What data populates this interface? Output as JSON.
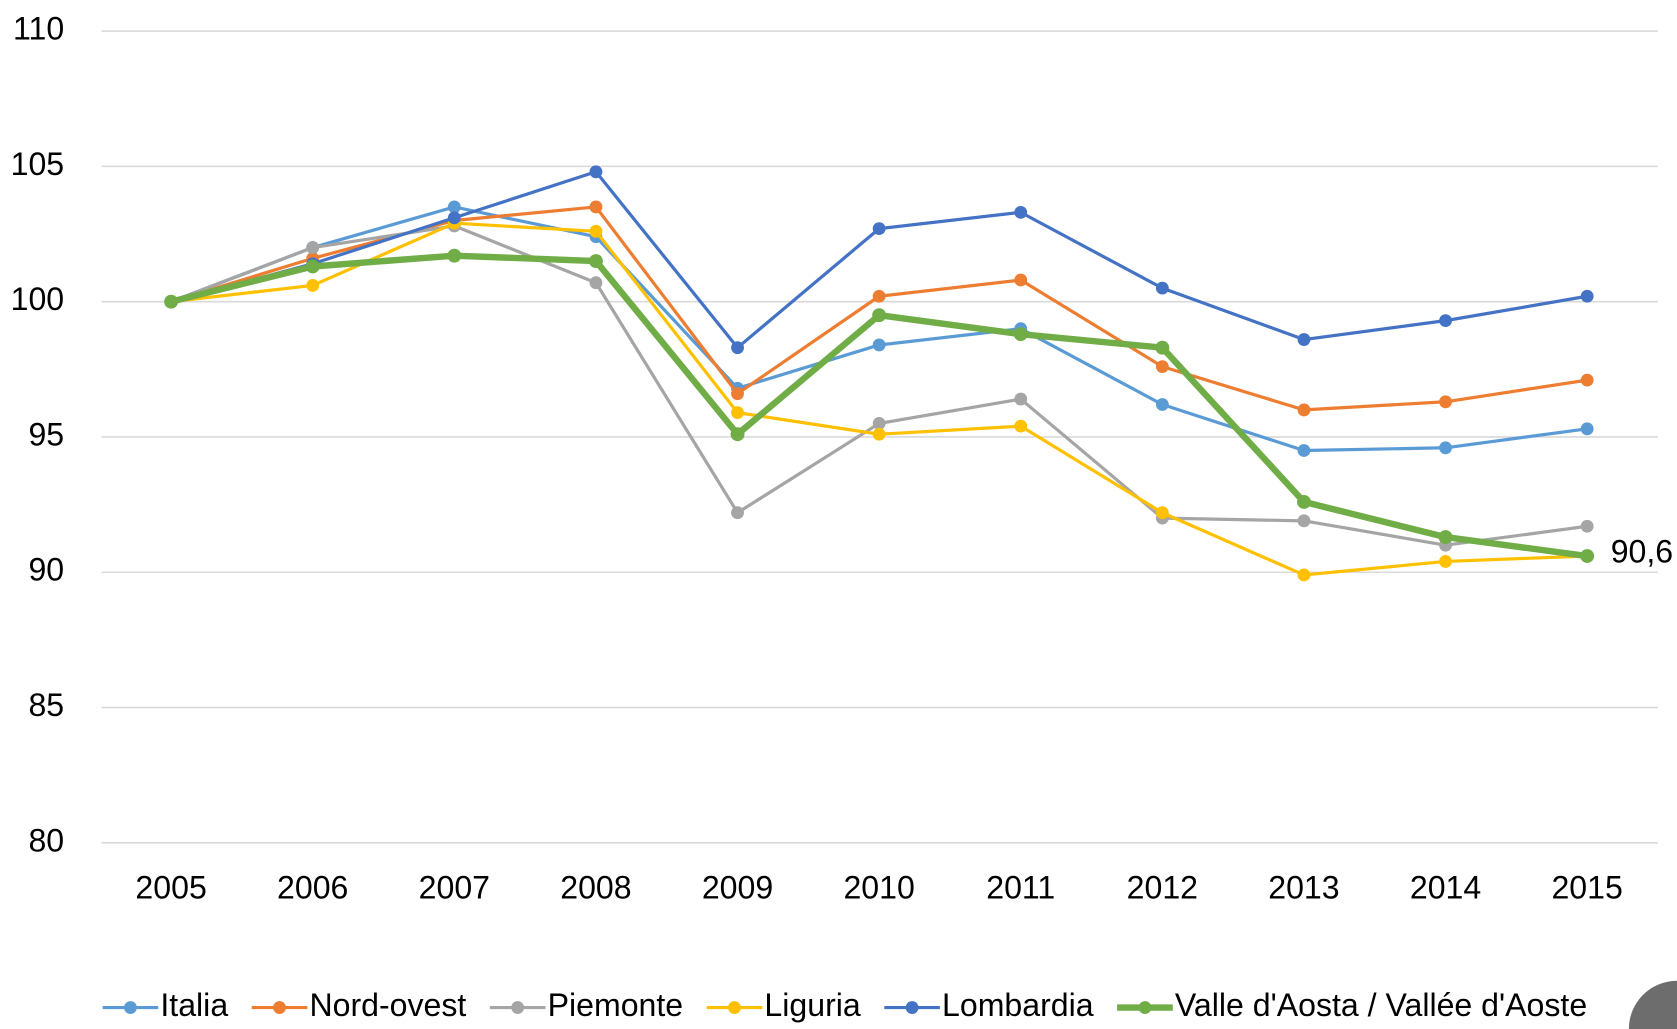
{
  "chart_data": {
    "type": "line",
    "x": [
      "2005",
      "2006",
      "2007",
      "2008",
      "2009",
      "2010",
      "2011",
      "2012",
      "2013",
      "2014",
      "2015"
    ],
    "series": [
      {
        "name": "Italia",
        "color": "#5b9bd5",
        "values": [
          100,
          102.0,
          103.5,
          102.4,
          96.8,
          98.4,
          99.0,
          96.2,
          94.5,
          94.6,
          95.3
        ]
      },
      {
        "name": "Nord-ovest",
        "color": "#ed7d31",
        "values": [
          100,
          101.6,
          103.0,
          103.5,
          96.6,
          100.2,
          100.8,
          97.6,
          96.0,
          96.3,
          97.1
        ]
      },
      {
        "name": "Piemonte",
        "color": "#a5a5a5",
        "values": [
          100,
          102.0,
          102.8,
          100.7,
          92.2,
          95.5,
          96.4,
          92.0,
          91.9,
          91.0,
          91.7
        ]
      },
      {
        "name": "Liguria",
        "color": "#ffc000",
        "values": [
          100,
          100.6,
          102.9,
          102.6,
          95.9,
          95.1,
          95.4,
          92.2,
          89.9,
          90.4,
          90.6
        ]
      },
      {
        "name": "Lombardia",
        "color": "#4472c4",
        "values": [
          100,
          101.4,
          103.1,
          104.8,
          98.3,
          102.7,
          103.3,
          100.5,
          98.6,
          99.3,
          100.2
        ]
      },
      {
        "name": "Valle d'Aosta / Vallée d'Aoste",
        "color": "#70ad47",
        "width": 6,
        "values": [
          100,
          101.3,
          101.7,
          101.5,
          95.1,
          99.5,
          98.8,
          98.3,
          92.6,
          91.3,
          90.6
        ],
        "value_labels": [
          null,
          null,
          null,
          null,
          null,
          null,
          null,
          null,
          null,
          null,
          "90,6"
        ]
      }
    ],
    "ylim": [
      80,
      110
    ],
    "yticks": [
      80,
      85,
      90,
      95,
      100,
      105,
      110
    ],
    "grid": true,
    "legend": "bottom"
  }
}
